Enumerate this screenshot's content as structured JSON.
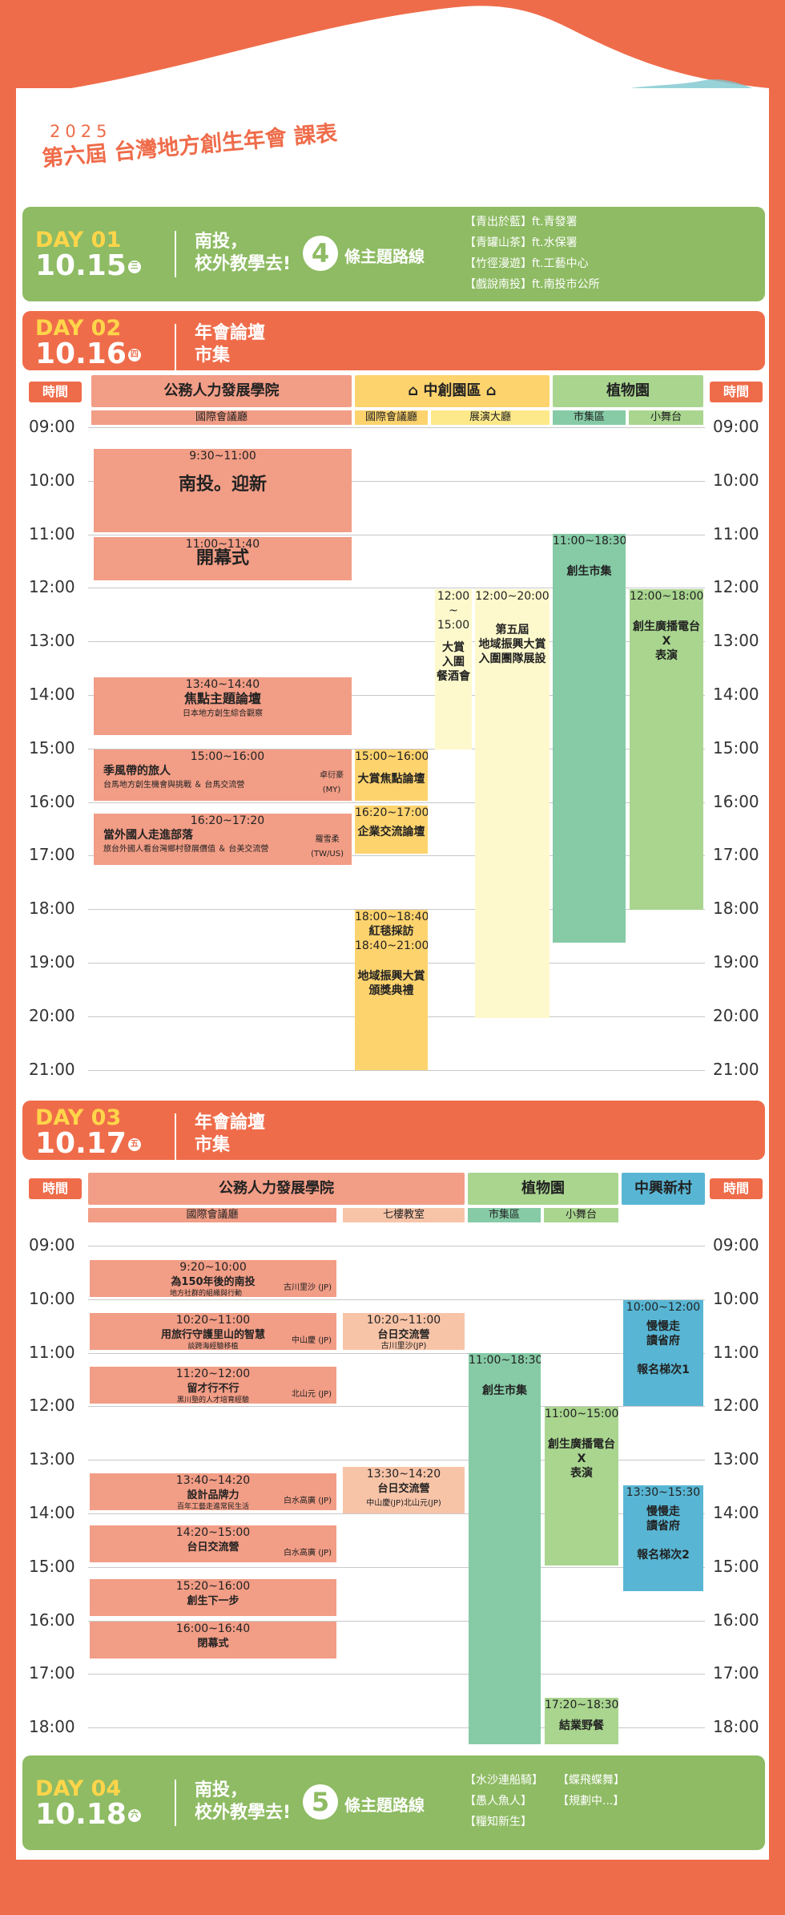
{
  "header": {
    "year": "2025",
    "title": "第六屆 台灣地方創生年會 課表"
  },
  "time_label": "時間",
  "day1": {
    "label": "DAY 01",
    "date": "10.15",
    "weekday": "三",
    "main": "南投，\n校外教學去!",
    "count": "4",
    "count_text": "條主題路線",
    "routes": [
      "【青出於藍】ft.青發署",
      "【青罐山茶】ft.水保署",
      "【竹徑漫遊】ft.工藝中心",
      "【戲說南投】ft.南投市公所"
    ]
  },
  "day2": {
    "label": "DAY 02",
    "date": "10.16",
    "weekday": "四",
    "main": "年會論壇\n市集",
    "venues": [
      "公務人力發展學院",
      "中創園區",
      "植物園"
    ],
    "subs": [
      "國際會議廳",
      "國際會議廳",
      "展演大廳",
      "市集區",
      "小舞台"
    ],
    "times": [
      "09:00",
      "10:00",
      "11:00",
      "12:00",
      "13:00",
      "14:00",
      "15:00",
      "16:00",
      "17:00",
      "18:00",
      "19:00",
      "20:00",
      "21:00"
    ],
    "events": [
      {
        "t": "9:30~11:00",
        "n": "南投。迎新"
      },
      {
        "t": "11:00~11:40",
        "n": "開幕式"
      },
      {
        "t": "13:40~14:40",
        "n": "焦點主題論壇",
        "s": "日本地方創生綜合觀察"
      },
      {
        "t": "15:00~16:00",
        "n": "季風帶的旅人",
        "s": "台馬地方創生機會與挑戰 ＆ 台馬交流營",
        "p": "卓衍豪\n(MY)"
      },
      {
        "t": "16:20~17:20",
        "n": "當外國人走進部落",
        "s": "旅台外國人看台灣鄉村發展價值 ＆ 台美交流營",
        "p": "羅雪柔\n(TW/US)"
      },
      {
        "t": "15:00~16:00",
        "n": "大賞焦點論壇"
      },
      {
        "t": "16:20~17:00",
        "n": "企業交流論壇"
      },
      {
        "t": "18:00~18:40",
        "n": "紅毯採訪"
      },
      {
        "t": "18:40~21:00",
        "n": "地域振興大賞\n頒獎典禮"
      },
      {
        "t": "12:00\n~\n15:00",
        "n": "大賞\n入圍\n餐酒會"
      },
      {
        "t": "12:00~20:00",
        "n": "第五屆\n地域振興大賞\n入圍團隊展設"
      },
      {
        "t": "11:00~18:30",
        "n": "創生市集"
      },
      {
        "t": "12:00~18:00",
        "n": "創生廣播電台\nX\n表演"
      }
    ]
  },
  "day3": {
    "label": "DAY 03",
    "date": "10.17",
    "weekday": "五",
    "main": "年會論壇\n市集",
    "venues": [
      "公務人力發展學院",
      "植物園",
      "中興新村"
    ],
    "subs": [
      "國際會議廳",
      "七樓教室",
      "市集區",
      "小舞台"
    ],
    "times": [
      "09:00",
      "10:00",
      "11:00",
      "12:00",
      "13:00",
      "14:00",
      "15:00",
      "16:00",
      "17:00",
      "18:00"
    ],
    "events": [
      {
        "t": "9:20~10:00",
        "n": "為150年後的南投",
        "s": "地方社群的組織與行動",
        "p": "古川里沙 (JP)"
      },
      {
        "t": "10:20~11:00",
        "n": "用旅行守護里山的智慧",
        "s": "談跨海經驗移植",
        "p": "中山慶 (JP)"
      },
      {
        "t": "11:20~12:00",
        "n": "留才行不行",
        "s": "黑川塾的人才培育經驗",
        "p": "北山元 (JP)"
      },
      {
        "t": "13:40~14:20",
        "n": "設計品牌力",
        "s": "百年工藝走進常民生活",
        "p": "白水高廣 (JP)"
      },
      {
        "t": "14:20~15:00",
        "n": "台日交流營",
        "p": "白水高廣 (JP)"
      },
      {
        "t": "15:20~16:00",
        "n": "創生下一步"
      },
      {
        "t": "16:00~16:40",
        "n": "閉幕式"
      },
      {
        "t": "10:20~11:00",
        "n": "台日交流營",
        "p": "古川里沙(JP)"
      },
      {
        "t": "13:30~14:20",
        "n": "台日交流營",
        "p": "中山慶(JP)北山元(JP)"
      },
      {
        "t": "11:00~18:30",
        "n": "創生市集"
      },
      {
        "t": "11:00~15:00",
        "n": "創生廣播電台\nX\n表演"
      },
      {
        "t": "17:20~18:30",
        "n": "結業野餐"
      },
      {
        "t": "10:00~12:00",
        "n": "慢慢走\n讀省府\n\n報名梯次1"
      },
      {
        "t": "13:30~15:30",
        "n": "慢慢走\n讀省府\n\n報名梯次2"
      }
    ]
  },
  "day4": {
    "label": "DAY 04",
    "date": "10.18",
    "weekday": "六",
    "main": "南投，\n校外教學去!",
    "count": "5",
    "count_text": "條主題路線",
    "routes": [
      "【水沙連船騎】",
      "【蝶飛蝶舞】",
      "【愚人魚人】",
      "【規劃中...】",
      "【糧知新生】"
    ]
  }
}
